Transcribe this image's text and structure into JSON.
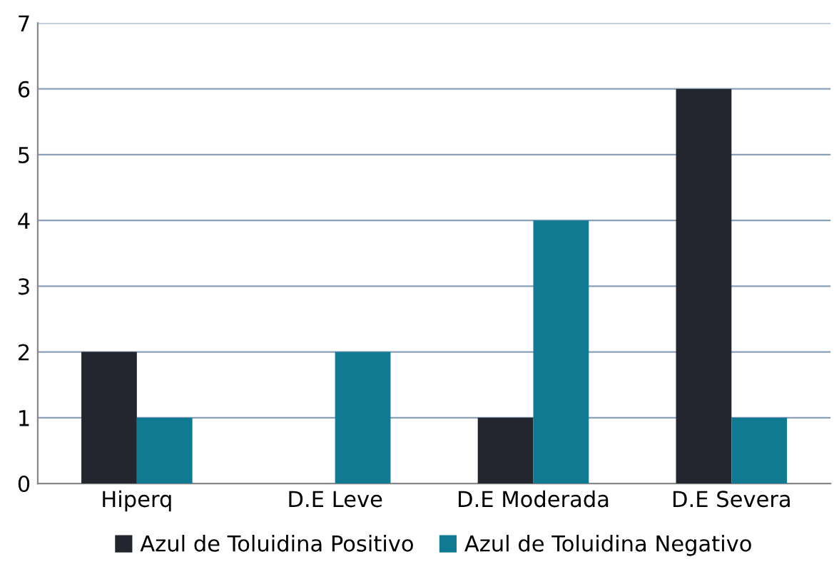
{
  "chart_data": {
    "type": "bar",
    "categories": [
      "Hiperq",
      "D.E Leve",
      "D.E Moderada",
      "D.E Severa"
    ],
    "series": [
      {
        "name": "Azul de Toluidina Positivo",
        "color": "#23262e",
        "values": [
          2,
          0,
          1,
          6
        ]
      },
      {
        "name": "Azul de Toluidina Negativo",
        "color": "#117a93",
        "values": [
          1,
          2,
          4,
          1
        ]
      }
    ],
    "ylim": [
      0,
      7
    ],
    "yticks": [
      0,
      1,
      2,
      3,
      4,
      5,
      6,
      7
    ],
    "grid": "y",
    "legend": "bottom"
  }
}
